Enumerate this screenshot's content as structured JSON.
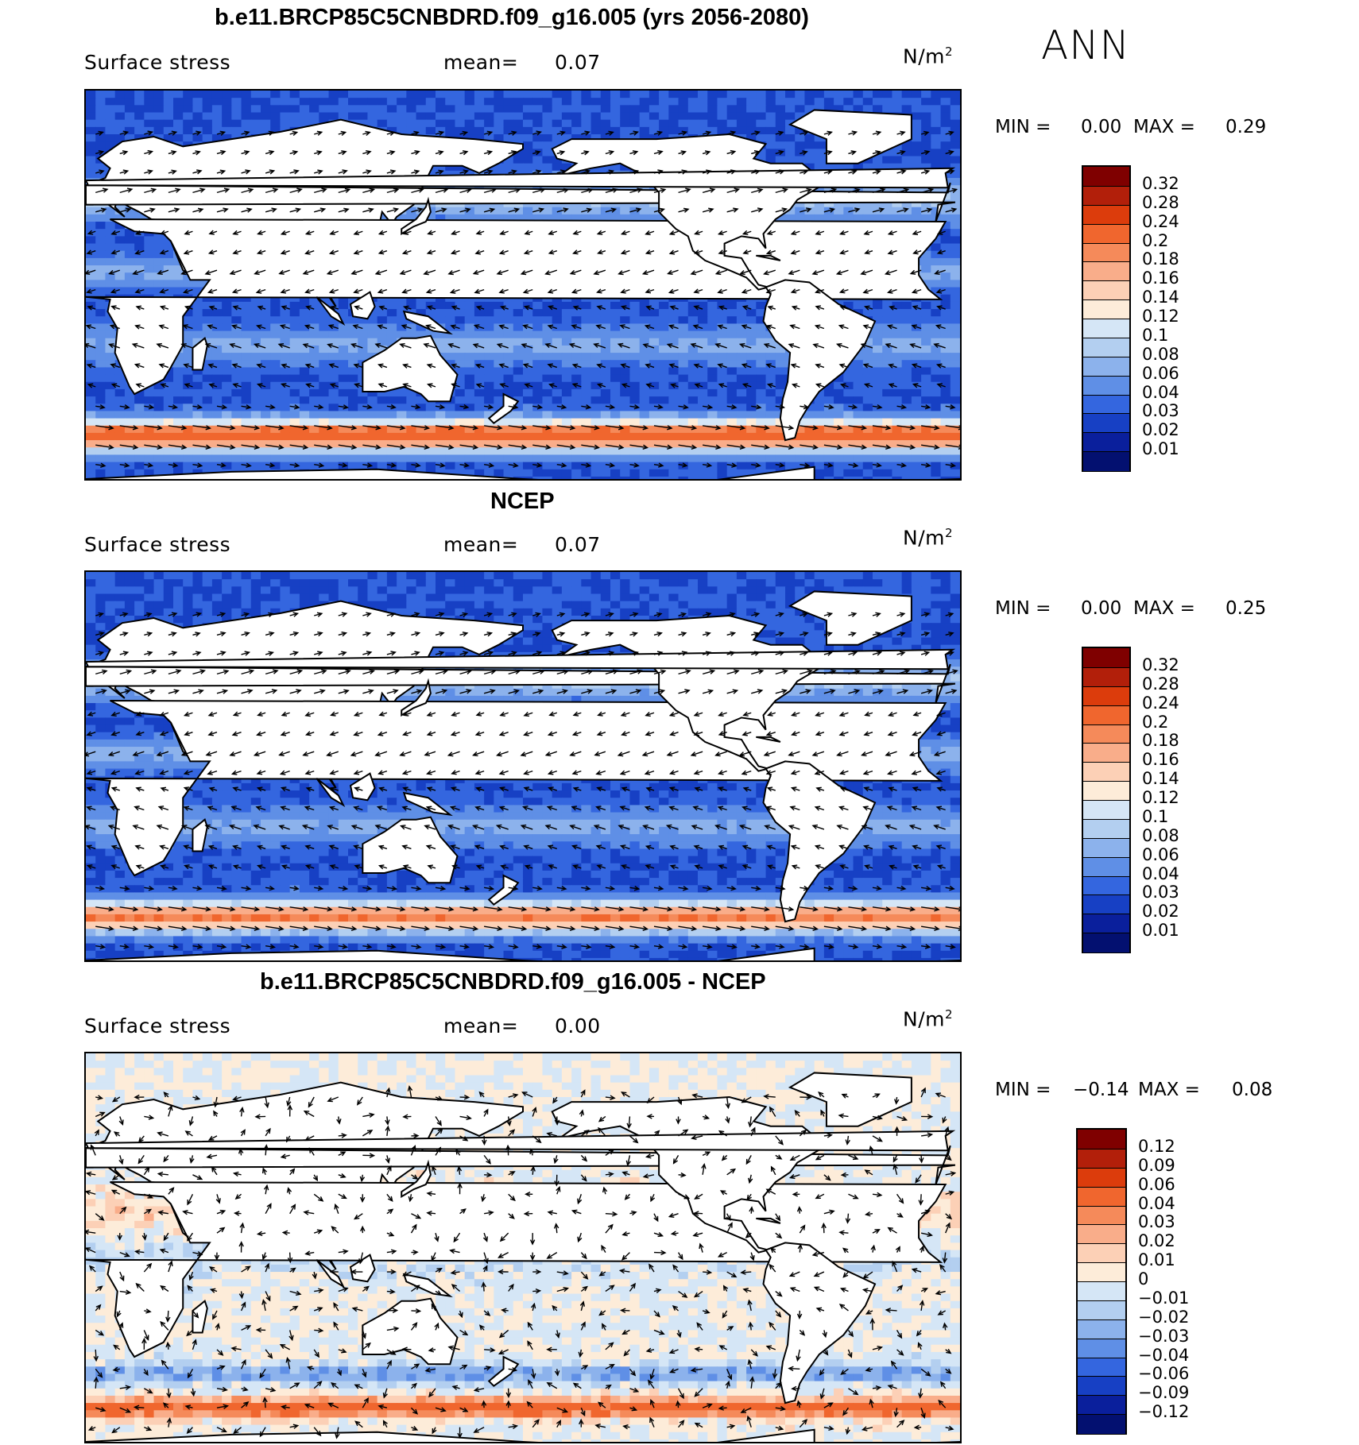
{
  "season_label": "ANN",
  "panels": [
    {
      "title": "b.e11.BRCP85C5CNBDRD.f09_g16.005 (yrs 2056-2080)",
      "variable": "Surface stress",
      "mean_label": "mean=",
      "mean_value": "0.07",
      "units_base": "N/m",
      "units_exp": "2",
      "min_label": "MIN =",
      "min_value": "0.00",
      "max_label": "MAX =",
      "max_value": "0.29",
      "field": "abs",
      "colorbar": {
        "labels": [
          "0.32",
          "0.28",
          "0.24",
          "0.2",
          "0.18",
          "0.16",
          "0.14",
          "0.12",
          "0.1",
          "0.08",
          "0.06",
          "0.04",
          "0.03",
          "0.02",
          "0.01"
        ],
        "colors": [
          "#7f0000",
          "#b21f0a",
          "#dc3c0c",
          "#f0662e",
          "#f58a5a",
          "#f9ad8a",
          "#fcd0b6",
          "#fdecd9",
          "#d5e6f6",
          "#b3cff0",
          "#8cb2ec",
          "#5f8fe6",
          "#3466df",
          "#1740c4",
          "#0a1f9c",
          "#031070"
        ]
      },
      "chart_data": {
        "type": "heatmap",
        "title": "b.e11.BRCP85C5CNBDRD.f09_g16.005 (yrs 2056-2080)",
        "variable": "Surface stress",
        "units": "N/m2",
        "mean": 0.07,
        "min": 0.0,
        "max": 0.29,
        "levels": [
          0.01,
          0.02,
          0.03,
          0.04,
          0.06,
          0.08,
          0.1,
          0.12,
          0.14,
          0.16,
          0.18,
          0.2,
          0.24,
          0.28,
          0.32
        ],
        "features": "maximum stress (0.16-0.28) in Southern Ocean westerly belt near 50S; minimum (0.00-0.02) in doldrums and subtropical highs; overlaid wind stress vectors"
      }
    },
    {
      "title": "NCEP",
      "variable": "Surface stress",
      "mean_label": "mean=",
      "mean_value": "0.07",
      "units_base": "N/m",
      "units_exp": "2",
      "min_label": "MIN =",
      "min_value": "0.00",
      "max_label": "MAX =",
      "max_value": "0.25",
      "field": "abs",
      "colorbar": {
        "labels": [
          "0.32",
          "0.28",
          "0.24",
          "0.2",
          "0.18",
          "0.16",
          "0.14",
          "0.12",
          "0.1",
          "0.08",
          "0.06",
          "0.04",
          "0.03",
          "0.02",
          "0.01"
        ],
        "colors": [
          "#7f0000",
          "#b21f0a",
          "#dc3c0c",
          "#f0662e",
          "#f58a5a",
          "#f9ad8a",
          "#fcd0b6",
          "#fdecd9",
          "#d5e6f6",
          "#b3cff0",
          "#8cb2ec",
          "#5f8fe6",
          "#3466df",
          "#1740c4",
          "#0a1f9c",
          "#031070"
        ]
      },
      "chart_data": {
        "type": "heatmap",
        "title": "NCEP",
        "variable": "Surface stress",
        "units": "N/m2",
        "mean": 0.07,
        "min": 0.0,
        "max": 0.25,
        "levels": [
          0.01,
          0.02,
          0.03,
          0.04,
          0.06,
          0.08,
          0.1,
          0.12,
          0.14,
          0.16,
          0.18,
          0.2,
          0.24,
          0.28,
          0.32
        ],
        "features": "maximum stress in Southern Ocean westerlies (up to ~0.24); weak stress in tropics and subtropics; coarse-gridded ocean mask"
      }
    },
    {
      "title": "b.e11.BRCP85C5CNBDRD.f09_g16.005 - NCEP",
      "variable": "Surface stress",
      "mean_label": "mean=",
      "mean_value": "0.00",
      "units_base": "N/m",
      "units_exp": "2",
      "min_label": "MIN =",
      "min_value": "−0.14",
      "max_label": "MAX =",
      "max_value": "0.08",
      "field": "diff",
      "colorbar": {
        "labels": [
          "0.12",
          "0.09",
          "0.06",
          "0.04",
          "0.03",
          "0.02",
          "0.01",
          "0",
          "−0.01",
          "−0.02",
          "−0.03",
          "−0.04",
          "−0.06",
          "−0.09",
          "−0.12"
        ],
        "colors": [
          "#7f0000",
          "#b21f0a",
          "#dc3c0c",
          "#f0662e",
          "#f58a5a",
          "#f9ad8a",
          "#fcd0b6",
          "#fdecd9",
          "#d5e6f6",
          "#b3cff0",
          "#8cb2ec",
          "#5f8fe6",
          "#3466df",
          "#1740c4",
          "#0a1f9c",
          "#031070"
        ]
      },
      "chart_data": {
        "type": "heatmap",
        "title": "b.e11.BRCP85C5CNBDRD.f09_g16.005 - NCEP",
        "variable": "Surface stress",
        "units": "N/m2",
        "mean": 0.0,
        "min": -0.14,
        "max": 0.08,
        "levels": [
          -0.12,
          -0.09,
          -0.06,
          -0.04,
          -0.03,
          -0.02,
          -0.01,
          0,
          0.01,
          0.02,
          0.03,
          0.04,
          0.06,
          0.09,
          0.12
        ],
        "features": "positive differences (0.03-0.06) along ~55S Southern Ocean band and Gulf Stream; weak negatives (-0.01 to -0.04) around 40-45S and tropics; mostly near zero elsewhere"
      }
    }
  ]
}
